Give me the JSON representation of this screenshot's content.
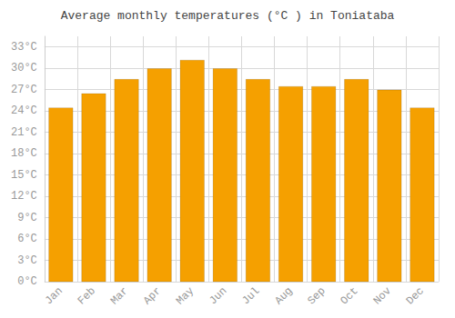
{
  "chart_data": {
    "type": "bar",
    "title": "Average monthly temperatures (°C ) in Toniataba",
    "categories": [
      "Jan",
      "Feb",
      "Mar",
      "Apr",
      "May",
      "Jun",
      "Jul",
      "Aug",
      "Sep",
      "Oct",
      "Nov",
      "Dec"
    ],
    "values": [
      24.5,
      26.5,
      28.5,
      30.0,
      31.2,
      30.0,
      28.5,
      27.5,
      27.5,
      28.5,
      27.0,
      24.5
    ],
    "color": "#F5A000",
    "ylim": [
      0,
      34.5
    ],
    "yticks": [
      {
        "value": 0,
        "label": "0°C"
      },
      {
        "value": 3,
        "label": "3°C"
      },
      {
        "value": 6,
        "label": "6°C"
      },
      {
        "value": 9,
        "label": "9°C"
      },
      {
        "value": 12,
        "label": "12°C"
      },
      {
        "value": 15,
        "label": "15°C"
      },
      {
        "value": 18,
        "label": "18°C"
      },
      {
        "value": 21,
        "label": "21°C"
      },
      {
        "value": 24,
        "label": "24°C"
      },
      {
        "value": 27,
        "label": "27°C"
      },
      {
        "value": 30,
        "label": "30°C"
      },
      {
        "value": 33,
        "label": "33°C"
      }
    ],
    "grid": true
  }
}
